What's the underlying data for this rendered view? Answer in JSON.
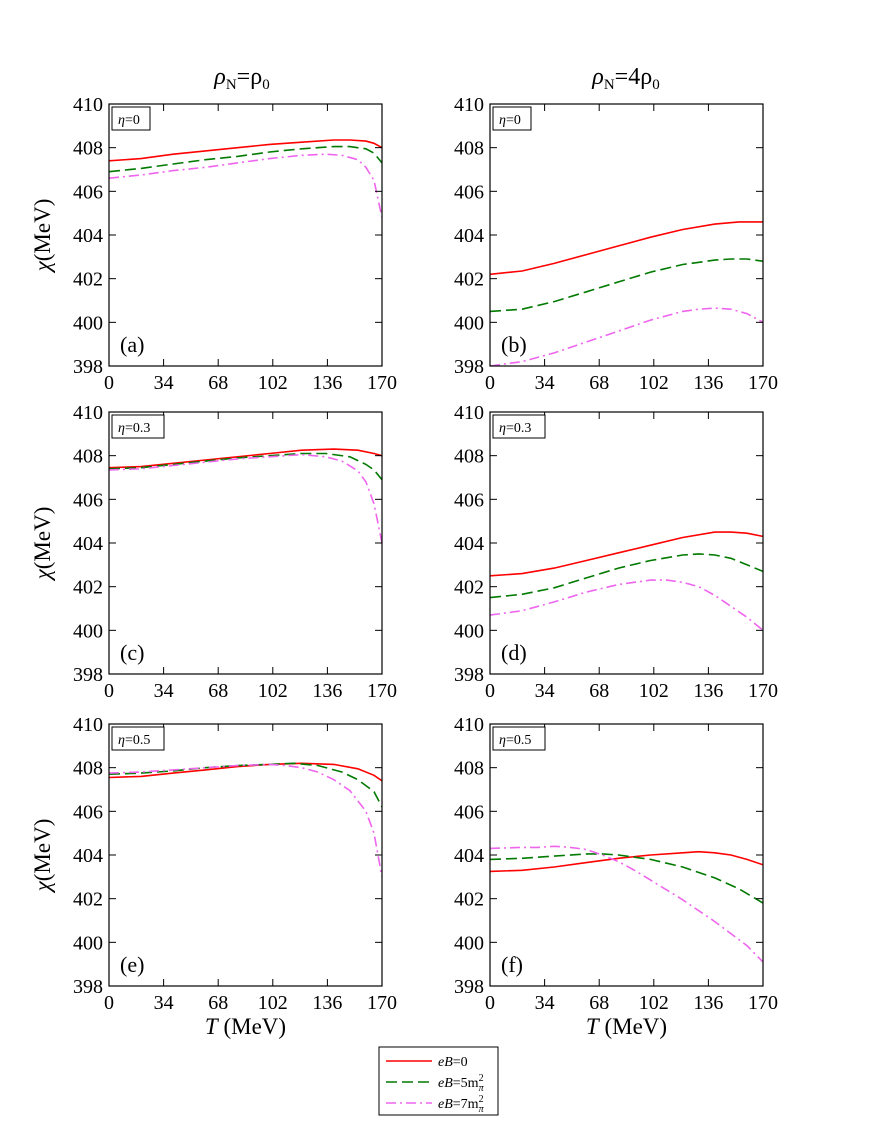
{
  "column_titles": [
    {
      "rho": "ρ",
      "sub": "N",
      "rest": "=ρ",
      "sub2": "0",
      "full": "ρN=ρ0"
    },
    {
      "rho": "ρ",
      "sub": "N",
      "rest": "=4ρ",
      "sub2": "0",
      "full": "ρN=4ρ0"
    }
  ],
  "legend": {
    "entries": [
      {
        "key": "eB0",
        "prefix": "eB",
        "rest": "=0",
        "sup": "",
        "sub": "",
        "color": "#ff0000",
        "dash": "solid"
      },
      {
        "key": "eB5",
        "prefix": "eB",
        "rest": "=5m",
        "sup": "2",
        "sub": "π",
        "color": "#007a00",
        "dash": "dashed"
      },
      {
        "key": "eB7",
        "prefix": "eB",
        "rest": "=7m",
        "sup": "2",
        "sub": "π",
        "color": "#ee66ee",
        "dash": "dashdot"
      }
    ]
  },
  "chart_data": [
    {
      "type": "line",
      "panel": "(a)",
      "eta": "η=0",
      "eta_sym": "η",
      "eta_val": "=0",
      "ylabel_sym": "χ",
      "ylabel_unit": "(MeV)",
      "xlabel_sym": "T",
      "xlabel_unit": " (MeV)",
      "xlim": [
        0,
        170
      ],
      "ylim": [
        398,
        410
      ],
      "xticks": [
        0,
        34,
        68,
        102,
        136,
        170
      ],
      "yticks": [
        398,
        400,
        402,
        404,
        406,
        408,
        410
      ],
      "series": [
        {
          "name": "eB=0",
          "x": [
            0,
            20,
            40,
            60,
            80,
            100,
            120,
            140,
            150,
            160,
            165,
            170
          ],
          "y": [
            407.4,
            407.5,
            407.7,
            407.85,
            408.0,
            408.15,
            408.25,
            408.35,
            408.35,
            408.3,
            408.2,
            408.0
          ]
        },
        {
          "name": "eB=5m2π",
          "x": [
            0,
            20,
            40,
            60,
            80,
            100,
            120,
            140,
            150,
            160,
            165,
            170
          ],
          "y": [
            406.9,
            407.05,
            407.25,
            407.45,
            407.6,
            407.8,
            407.95,
            408.05,
            408.05,
            407.95,
            407.75,
            407.3
          ]
        },
        {
          "name": "eB=7m2π",
          "x": [
            0,
            20,
            40,
            60,
            80,
            100,
            120,
            135,
            145,
            155,
            160,
            165,
            170
          ],
          "y": [
            406.6,
            406.75,
            406.95,
            407.1,
            407.3,
            407.5,
            407.65,
            407.7,
            407.65,
            407.45,
            407.1,
            406.5,
            404.8
          ]
        }
      ]
    },
    {
      "type": "line",
      "panel": "(b)",
      "eta": "η=0",
      "eta_sym": "η",
      "eta_val": "=0",
      "ylabel_sym": "χ",
      "ylabel_unit": "(MeV)",
      "xlabel_sym": "T",
      "xlabel_unit": " (MeV)",
      "xlim": [
        0,
        170
      ],
      "ylim": [
        398,
        410
      ],
      "xticks": [
        0,
        34,
        68,
        102,
        136,
        170
      ],
      "yticks": [
        398,
        400,
        402,
        404,
        406,
        408,
        410
      ],
      "series": [
        {
          "name": "eB=0",
          "x": [
            0,
            20,
            40,
            60,
            80,
            100,
            120,
            140,
            155,
            170
          ],
          "y": [
            402.2,
            402.35,
            402.7,
            403.1,
            403.5,
            403.9,
            404.25,
            404.5,
            404.6,
            404.6
          ]
        },
        {
          "name": "eB=5m2π",
          "x": [
            0,
            20,
            40,
            60,
            80,
            100,
            120,
            140,
            150,
            160,
            170
          ],
          "y": [
            400.5,
            400.6,
            400.95,
            401.4,
            401.85,
            402.3,
            402.65,
            402.85,
            402.9,
            402.9,
            402.8
          ]
        },
        {
          "name": "eB=7m2π",
          "x": [
            0,
            20,
            40,
            60,
            80,
            100,
            120,
            130,
            140,
            150,
            160,
            170
          ],
          "y": [
            398.0,
            398.2,
            398.6,
            399.1,
            399.6,
            400.1,
            400.5,
            400.6,
            400.65,
            400.6,
            400.4,
            400.0
          ]
        }
      ]
    },
    {
      "type": "line",
      "panel": "(c)",
      "eta": "η=0.3",
      "eta_sym": "η",
      "eta_val": "=0.3",
      "ylabel_sym": "χ",
      "ylabel_unit": "(MeV)",
      "xlabel_sym": "T",
      "xlabel_unit": " (MeV)",
      "xlim": [
        0,
        170
      ],
      "ylim": [
        398,
        410
      ],
      "xticks": [
        0,
        34,
        68,
        102,
        136,
        170
      ],
      "yticks": [
        398,
        400,
        402,
        404,
        406,
        408,
        410
      ],
      "series": [
        {
          "name": "eB=0",
          "x": [
            0,
            20,
            40,
            60,
            80,
            100,
            120,
            140,
            155,
            165,
            170
          ],
          "y": [
            407.45,
            407.5,
            407.65,
            407.8,
            407.95,
            408.1,
            408.25,
            408.3,
            408.25,
            408.1,
            408.0
          ]
        },
        {
          "name": "eB=5m2π",
          "x": [
            0,
            20,
            40,
            60,
            80,
            100,
            120,
            135,
            150,
            160,
            165,
            170
          ],
          "y": [
            407.4,
            407.45,
            407.6,
            407.75,
            407.9,
            408.0,
            408.1,
            408.1,
            407.95,
            407.6,
            407.35,
            406.9
          ]
        },
        {
          "name": "eB=7m2π",
          "x": [
            0,
            20,
            40,
            60,
            80,
            100,
            120,
            135,
            145,
            155,
            160,
            165,
            170
          ],
          "y": [
            407.35,
            407.4,
            407.55,
            407.7,
            407.85,
            407.95,
            408.05,
            407.95,
            407.75,
            407.3,
            406.8,
            405.8,
            404.0
          ]
        }
      ]
    },
    {
      "type": "line",
      "panel": "(d)",
      "eta": "η=0.3",
      "eta_sym": "η",
      "eta_val": "=0.3",
      "ylabel_sym": "χ",
      "ylabel_unit": "(MeV)",
      "xlabel_sym": "T",
      "xlabel_unit": " (MeV)",
      "xlim": [
        0,
        170
      ],
      "ylim": [
        398,
        410
      ],
      "xticks": [
        0,
        34,
        68,
        102,
        136,
        170
      ],
      "yticks": [
        398,
        400,
        402,
        404,
        406,
        408,
        410
      ],
      "series": [
        {
          "name": "eB=0",
          "x": [
            0,
            20,
            40,
            60,
            80,
            100,
            120,
            140,
            150,
            160,
            170
          ],
          "y": [
            402.5,
            402.6,
            402.85,
            403.2,
            403.55,
            403.9,
            404.25,
            404.5,
            404.5,
            404.45,
            404.3
          ]
        },
        {
          "name": "eB=5m2π",
          "x": [
            0,
            20,
            40,
            60,
            80,
            100,
            120,
            130,
            140,
            150,
            160,
            170
          ],
          "y": [
            401.5,
            401.65,
            401.95,
            402.4,
            402.85,
            403.2,
            403.45,
            403.5,
            403.45,
            403.3,
            403.0,
            402.7
          ]
        },
        {
          "name": "eB=7m2π",
          "x": [
            0,
            20,
            40,
            60,
            80,
            100,
            110,
            120,
            130,
            140,
            150,
            160,
            170
          ],
          "y": [
            400.7,
            400.9,
            401.3,
            401.75,
            402.1,
            402.3,
            402.3,
            402.2,
            402.0,
            401.6,
            401.1,
            400.6,
            400.0
          ]
        }
      ]
    },
    {
      "type": "line",
      "panel": "(e)",
      "eta": "η=0.5",
      "eta_sym": "η",
      "eta_val": "=0.5",
      "ylabel_sym": "χ",
      "ylabel_unit": "(MeV)",
      "xlabel_sym": "T",
      "xlabel_unit": " (MeV)",
      "xlim": [
        0,
        170
      ],
      "ylim": [
        398,
        410
      ],
      "xticks": [
        0,
        34,
        68,
        102,
        136,
        170
      ],
      "yticks": [
        398,
        400,
        402,
        404,
        406,
        408,
        410
      ],
      "series": [
        {
          "name": "eB=0",
          "x": [
            0,
            20,
            40,
            60,
            80,
            100,
            120,
            140,
            155,
            165,
            170
          ],
          "y": [
            407.55,
            407.6,
            407.75,
            407.9,
            408.05,
            408.15,
            408.2,
            408.15,
            407.95,
            407.65,
            407.4
          ]
        },
        {
          "name": "eB=5m2π",
          "x": [
            0,
            20,
            40,
            60,
            80,
            100,
            115,
            130,
            145,
            155,
            165,
            170
          ],
          "y": [
            407.7,
            407.75,
            407.85,
            408.0,
            408.1,
            408.15,
            408.2,
            408.1,
            407.8,
            407.45,
            406.9,
            406.2
          ]
        },
        {
          "name": "eB=7m2π",
          "x": [
            0,
            20,
            40,
            60,
            80,
            100,
            110,
            120,
            130,
            140,
            150,
            160,
            165,
            170
          ],
          "y": [
            407.75,
            407.8,
            407.9,
            408.0,
            408.1,
            408.15,
            408.1,
            408.0,
            407.8,
            407.45,
            406.95,
            406.0,
            405.0,
            403.0
          ]
        }
      ]
    },
    {
      "type": "line",
      "panel": "(f)",
      "eta": "η=0.5",
      "eta_sym": "η",
      "eta_val": "=0.5",
      "ylabel_sym": "χ",
      "ylabel_unit": "(MeV)",
      "xlabel_sym": "T",
      "xlabel_unit": " (MeV)",
      "xlim": [
        0,
        170
      ],
      "ylim": [
        398,
        410
      ],
      "xticks": [
        0,
        34,
        68,
        102,
        136,
        170
      ],
      "yticks": [
        398,
        400,
        402,
        404,
        406,
        408,
        410
      ],
      "series": [
        {
          "name": "eB=0",
          "x": [
            0,
            20,
            40,
            60,
            80,
            100,
            120,
            130,
            140,
            150,
            160,
            170
          ],
          "y": [
            403.25,
            403.3,
            403.45,
            403.65,
            403.85,
            404.0,
            404.1,
            404.15,
            404.1,
            404.0,
            403.8,
            403.55
          ]
        },
        {
          "name": "eB=5m2π",
          "x": [
            0,
            20,
            40,
            60,
            70,
            80,
            90,
            100,
            120,
            140,
            155,
            170
          ],
          "y": [
            403.8,
            403.85,
            403.95,
            404.05,
            404.05,
            404.0,
            403.9,
            403.8,
            403.45,
            402.95,
            402.45,
            401.8
          ]
        },
        {
          "name": "eB=7m2π",
          "x": [
            0,
            20,
            30,
            40,
            50,
            60,
            70,
            80,
            90,
            100,
            120,
            140,
            160,
            170
          ],
          "y": [
            404.3,
            404.35,
            404.35,
            404.4,
            404.35,
            404.25,
            404.0,
            403.7,
            403.3,
            402.85,
            401.95,
            400.95,
            399.85,
            399.1
          ]
        }
      ]
    }
  ]
}
